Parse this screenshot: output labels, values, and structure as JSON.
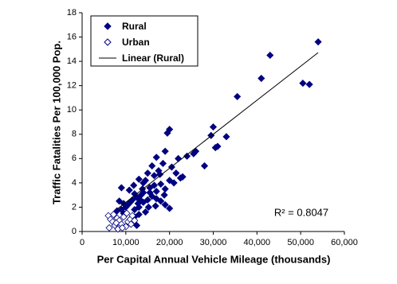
{
  "chart_data": {
    "type": "scatter",
    "x_label": "Per Capital Annual Vehicle Mileage (thousands)",
    "y_label": "Traffic Fatalities Per 100,000 Pop.",
    "annotation": "R² = 0.8047",
    "xlim": [
      0,
      60000
    ],
    "ylim": [
      0,
      18
    ],
    "xticks": [
      0,
      {
        "value": 10000,
        "label": "10,000"
      },
      {
        "value": 20000,
        "label": "20,000"
      },
      {
        "value": 30000,
        "label": "30,000"
      },
      {
        "value": 40000,
        "label": "40,000"
      },
      {
        "value": 50000,
        "label": "50,000"
      },
      {
        "value": 60000,
        "label": "60,000"
      }
    ],
    "yticks": [
      0,
      2,
      4,
      6,
      8,
      10,
      12,
      14,
      16,
      18
    ],
    "series": [
      {
        "name": "Rural",
        "color": "#000080",
        "marker": "filled-diamond",
        "x": [
          54000,
          43000,
          41000,
          50500,
          52000,
          35500,
          20000,
          19500,
          30000,
          31000,
          30500,
          33000,
          29500,
          26000,
          25500,
          28000,
          22000,
          24000,
          23000,
          20500,
          19000,
          17000,
          18500,
          16000,
          17500,
          15000,
          16500,
          14500,
          13000,
          20000,
          21000,
          18000,
          19000,
          17000,
          15500,
          14000,
          13500,
          12500,
          12000,
          11500,
          11000,
          10500,
          10000,
          9500,
          9000,
          12000,
          13000,
          14000,
          15000,
          16000,
          17000,
          18000,
          19000,
          20000,
          14500,
          13000,
          12000,
          11000,
          9500,
          8500,
          8000,
          12500,
          14000,
          15500,
          16500,
          12800,
          13800,
          11800,
          10800,
          9000,
          21500,
          22500,
          17800,
          18800,
          16800,
          15200,
          13300
        ],
        "values": [
          15.6,
          14.5,
          12.6,
          12.2,
          12.1,
          11.1,
          8.4,
          8.1,
          8.6,
          7.0,
          6.9,
          7.8,
          7.9,
          6.6,
          6.4,
          5.4,
          6.0,
          6.2,
          4.5,
          5.3,
          6.6,
          6.1,
          5.6,
          5.4,
          5.0,
          4.8,
          4.6,
          4.2,
          4.3,
          4.2,
          4.0,
          3.9,
          3.5,
          3.3,
          3.6,
          3.2,
          3.0,
          2.8,
          3.1,
          2.6,
          2.4,
          2.2,
          2.0,
          2.3,
          1.8,
          1.8,
          2.0,
          2.4,
          2.6,
          2.9,
          2.7,
          2.5,
          2.2,
          1.9,
          1.6,
          1.4,
          1.2,
          1.0,
          1.5,
          2.5,
          1.7,
          0.5,
          4.0,
          3.2,
          3.8,
          2.3,
          3.5,
          3.8,
          3.4,
          3.6,
          4.8,
          4.4,
          4.7,
          3.0,
          2.1,
          2.0,
          2.6
        ]
      },
      {
        "name": "Urban",
        "color": "#000080",
        "marker": "open-diamond",
        "x": [
          6000,
          6500,
          7000,
          7500,
          8000,
          8500,
          9000,
          9500,
          10000,
          10500,
          11000,
          11500,
          6200,
          7200,
          8200,
          9200,
          10200,
          11200,
          12000,
          7800
        ],
        "values": [
          1.3,
          1.0,
          0.8,
          0.5,
          1.1,
          0.9,
          0.6,
          1.2,
          0.4,
          0.8,
          1.0,
          1.3,
          0.3,
          1.4,
          0.2,
          0.3,
          1.5,
          0.6,
          0.9,
          0.7
        ]
      },
      {
        "name": "Linear (Rural)",
        "color": "#000000",
        "marker": "line",
        "x": [
          8000,
          54000
        ],
        "values": [
          1.84,
          14.72
        ]
      }
    ]
  }
}
